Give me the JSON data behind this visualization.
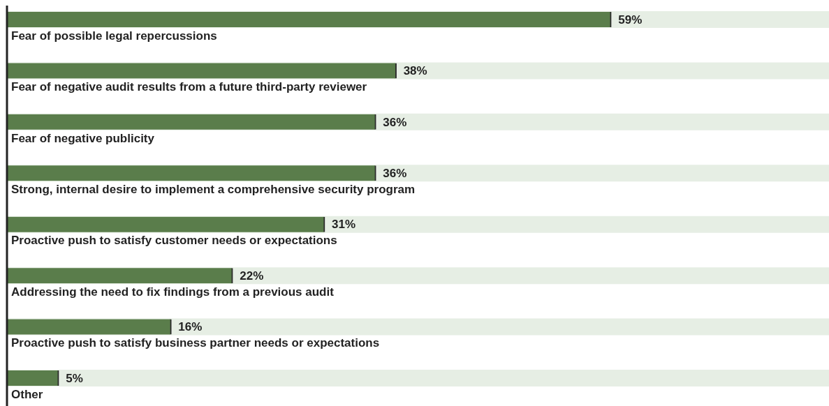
{
  "chart_data": {
    "type": "bar",
    "orientation": "horizontal",
    "categories": [
      "Fear of possible legal repercussions",
      "Fear of negative audit results from a future third-party reviewer",
      "Fear of negative publicity",
      "Strong, internal desire to implement a comprehensive security program",
      "Proactive push to satisfy customer needs or expectations",
      "Addressing the need to fix findings from a previous audit",
      "Proactive push to satisfy business partner needs or expectations",
      "Other"
    ],
    "values": [
      59,
      38,
      36,
      36,
      31,
      22,
      16,
      5
    ],
    "value_labels": [
      "59%",
      "38%",
      "36%",
      "36%",
      "31%",
      "22%",
      "16%",
      "5%"
    ],
    "color": "#5a7d4b"
  }
}
